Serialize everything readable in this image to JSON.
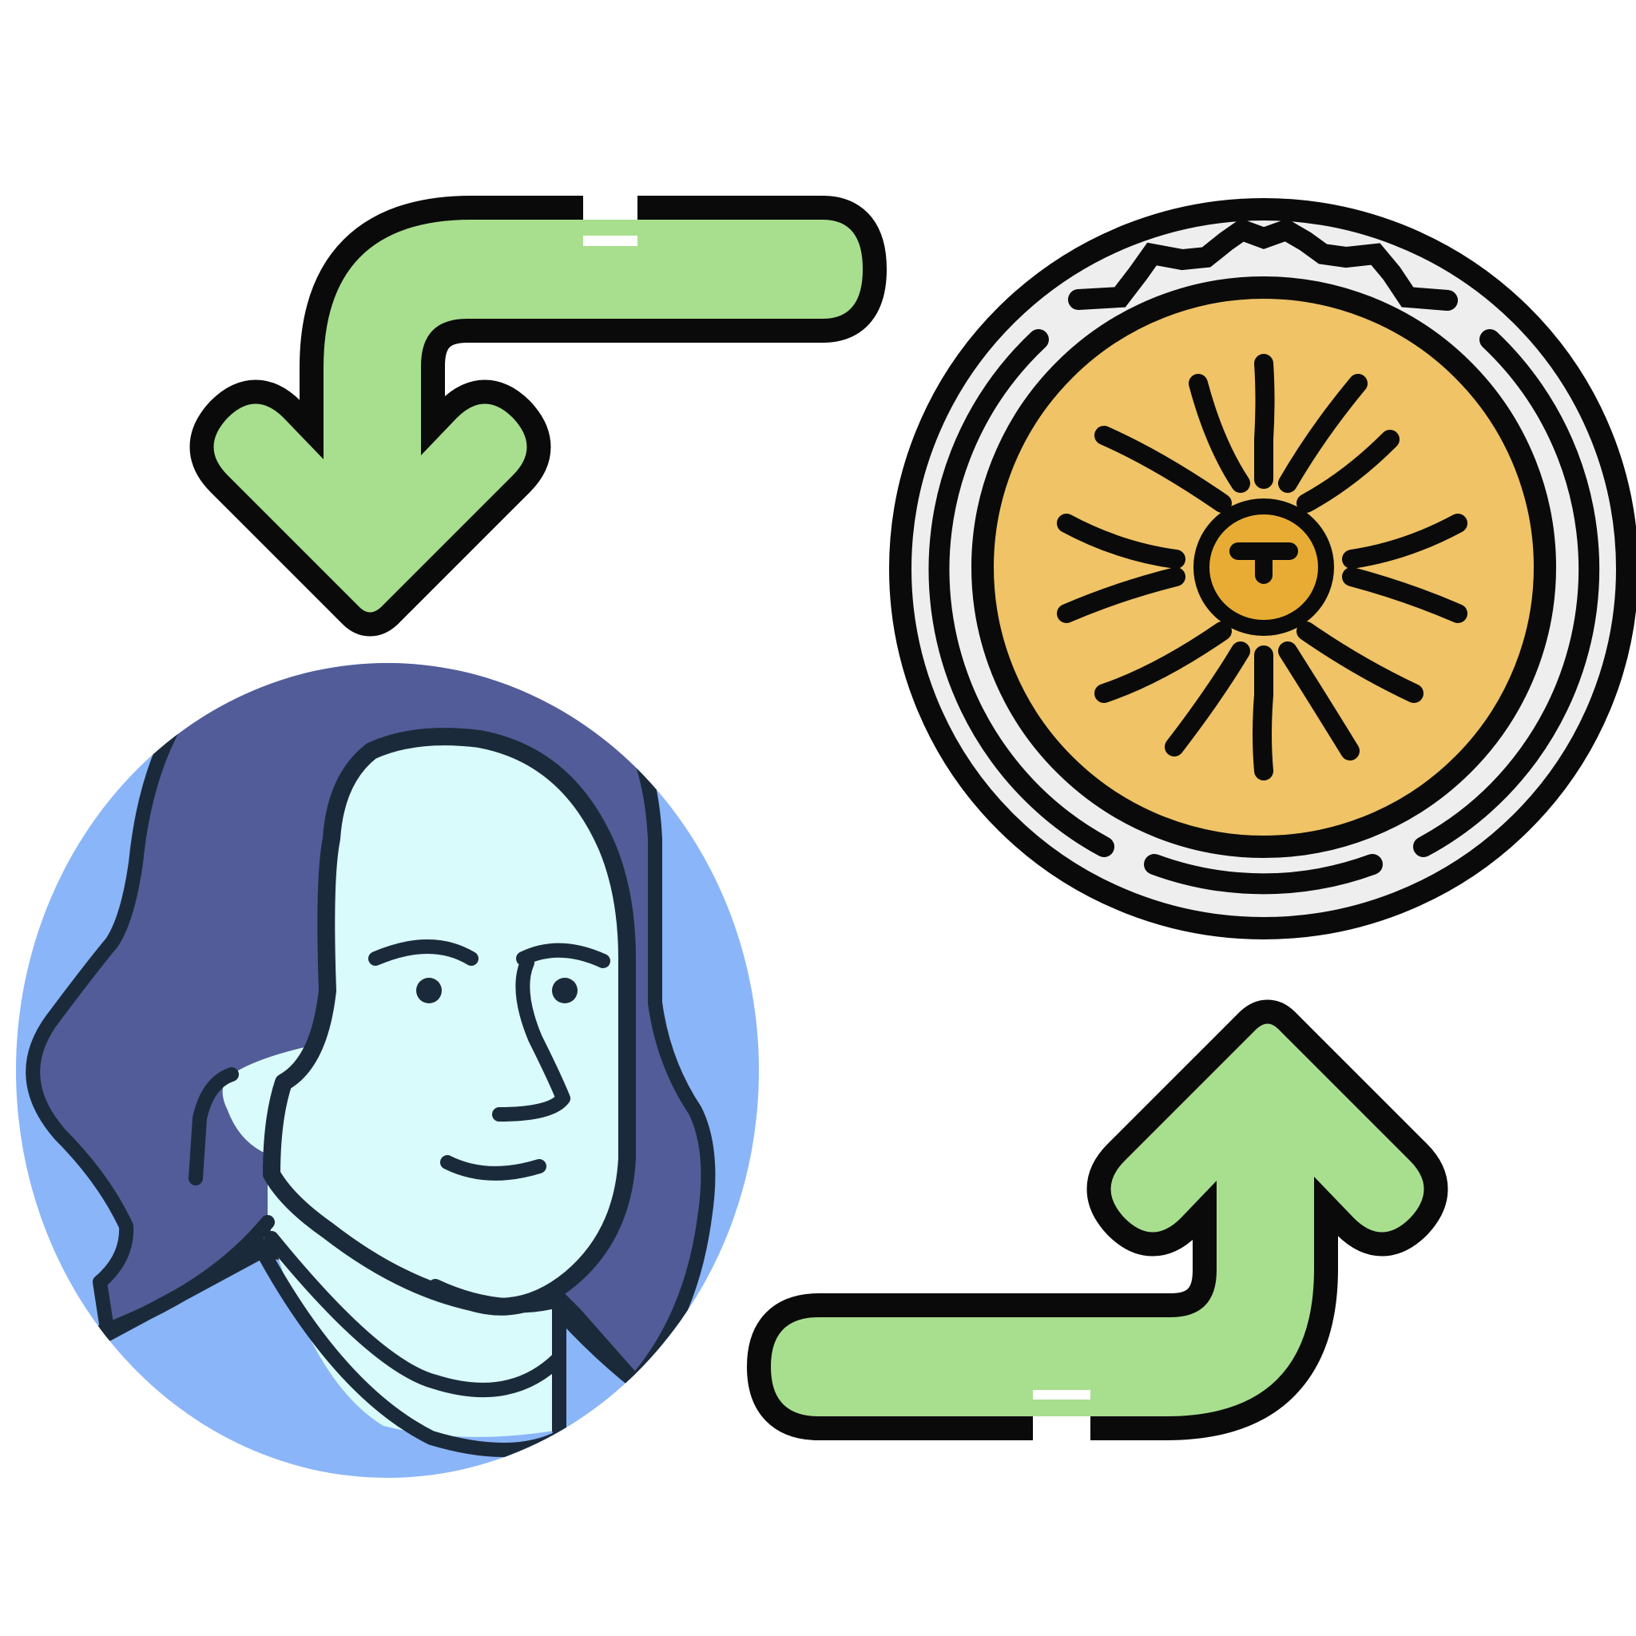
{
  "illustration": {
    "icons": [
      "arrow-down-left-icon",
      "sun-coin-icon",
      "portrait-icon",
      "arrow-up-right-icon"
    ],
    "colors": {
      "outline": "#0a0a0a",
      "portrait_outline": "#1b2a3a",
      "arrow_fill": "#a8df8e",
      "coin_rim": "#eeeeef",
      "coin_face": "#efc366",
      "coin_center": "#e8ac35",
      "portrait_background": "#8ab5f8",
      "hair": "#525c98",
      "skin": "#d9fbfb",
      "page_background": "#ffffff"
    }
  }
}
